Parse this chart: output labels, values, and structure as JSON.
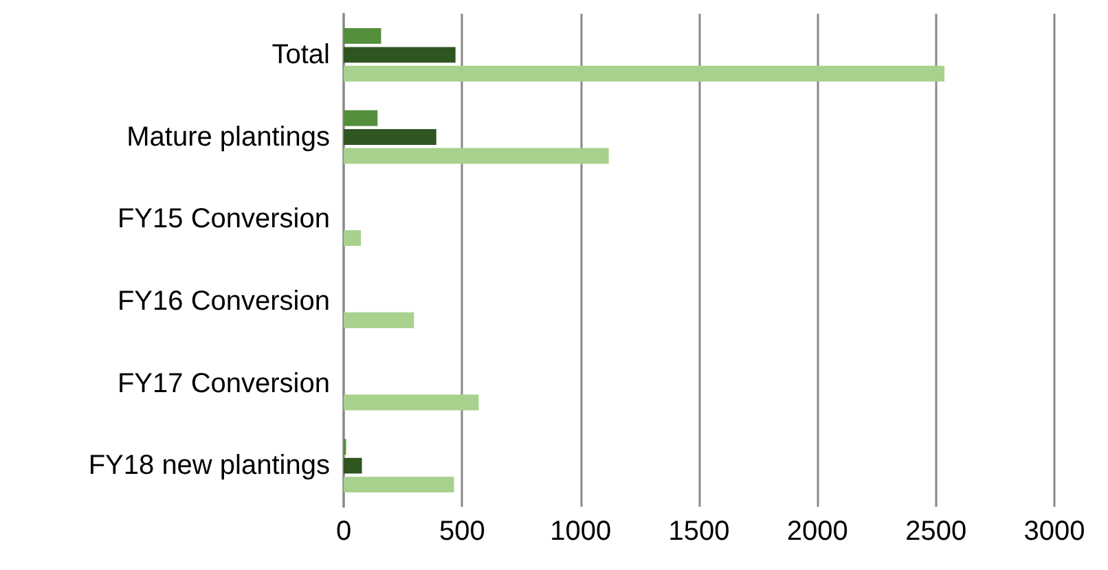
{
  "chart_data": {
    "type": "bar",
    "orientation": "horizontal",
    "categories": [
      "Total",
      "Mature plantings",
      "FY15 Conversion",
      "FY16 Conversion",
      "FY17 Conversion",
      "FY18 new plantings"
    ],
    "series": [
      {
        "color": "#548f3c",
        "values": [
          158,
          143,
          null,
          null,
          null,
          10
        ]
      },
      {
        "color": "#2f5520",
        "values": [
          472,
          391,
          null,
          null,
          null,
          77
        ]
      },
      {
        "color": "#a9d18e",
        "values": [
          2536,
          1119,
          73,
          297,
          570,
          466
        ]
      }
    ],
    "xlim": [
      0,
      3000
    ],
    "xticks": [
      0,
      500,
      1000,
      1500,
      2000,
      2500,
      3000
    ],
    "grid": "x"
  }
}
